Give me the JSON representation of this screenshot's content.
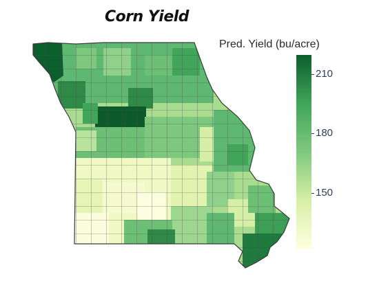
{
  "title": "Corn Yield",
  "legend": {
    "title": "Pred. Yield (bu/acre)",
    "min": 130,
    "max": 220,
    "colors": {
      "low": "#ffffe0",
      "mid_low": "#d6efa6",
      "mid": "#7fc97f",
      "mid_high": "#41a55a",
      "high": "#0b5f2c"
    },
    "ticks": [
      {
        "label": "210",
        "value": 210
      },
      {
        "label": "180",
        "value": 180
      },
      {
        "label": "150",
        "value": 150
      }
    ]
  }
}
